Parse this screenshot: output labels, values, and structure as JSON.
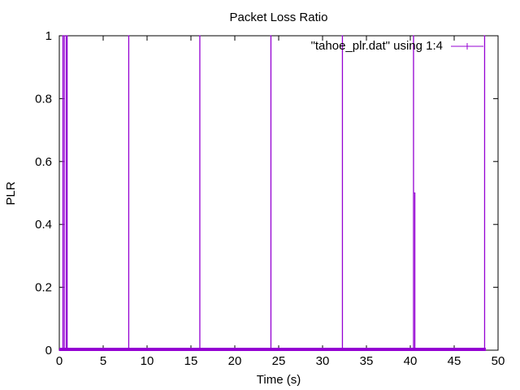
{
  "chart_data": {
    "type": "line",
    "title": "Packet Loss Ratio",
    "xlabel": "Time (s)",
    "ylabel": "PLR",
    "xlim": [
      0,
      50
    ],
    "ylim": [
      0,
      1
    ],
    "x_ticks": [
      0,
      5,
      10,
      15,
      20,
      25,
      30,
      35,
      40,
      45,
      50
    ],
    "y_ticks": [
      0,
      0.2,
      0.4,
      0.6,
      0.8,
      1
    ],
    "legend_position": "top-right",
    "series": [
      {
        "name": "\"tahoe_plr.dat\" using 1:4",
        "color": "#9400d3",
        "x": [
          0.0,
          0.4,
          0.4,
          0.42,
          0.42,
          0.55,
          0.55,
          0.58,
          0.58,
          0.78,
          0.78,
          0.81,
          0.81,
          0.88,
          0.88,
          0.91,
          0.91,
          7.9,
          7.9,
          7.93,
          7.93,
          16.0,
          16.0,
          16.03,
          16.03,
          24.1,
          24.1,
          24.13,
          24.13,
          32.25,
          32.25,
          32.28,
          32.28,
          40.35,
          40.35,
          40.38,
          40.38,
          40.5,
          40.5,
          40.53,
          40.53,
          48.45,
          48.45,
          48.48,
          48.48,
          48.6
        ],
        "y": [
          0,
          0,
          1,
          1,
          0,
          0,
          1,
          1,
          0,
          0,
          1,
          1,
          0,
          0,
          1,
          1,
          0,
          0,
          1,
          1,
          0,
          0,
          1,
          1,
          0,
          0,
          1,
          1,
          0,
          0,
          1,
          1,
          0,
          0,
          1,
          1,
          0,
          0,
          0.5,
          0.5,
          0,
          0,
          1,
          1,
          0,
          0
        ]
      }
    ]
  }
}
